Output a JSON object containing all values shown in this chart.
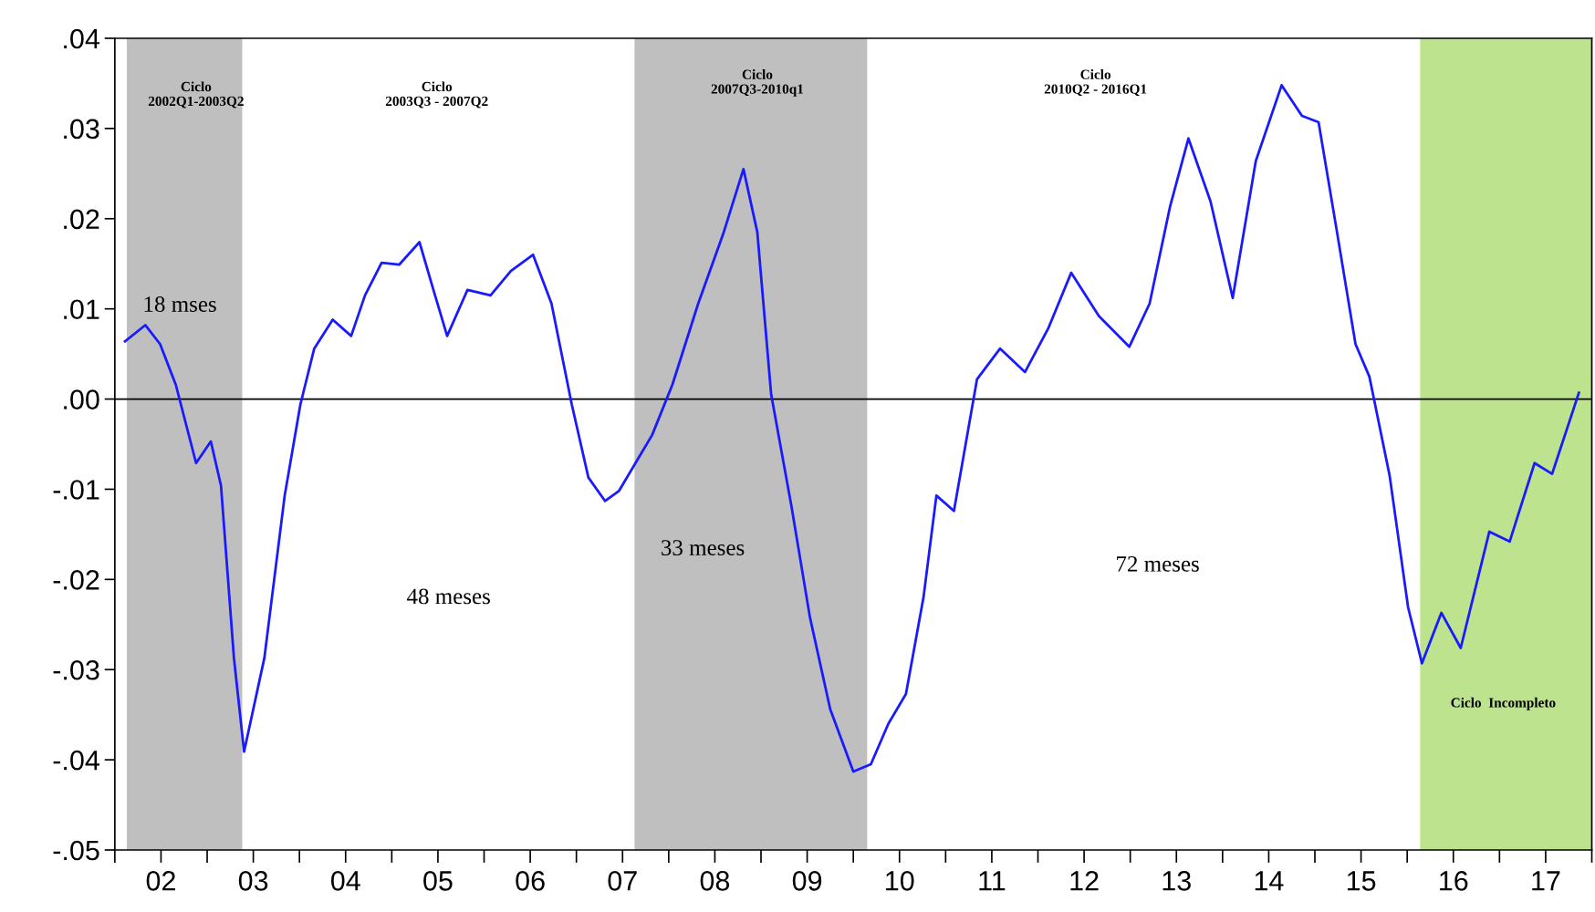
{
  "chart_data": {
    "type": "line",
    "x": [
      1.61,
      1.83,
      1.99,
      2.16,
      2.38,
      2.54,
      2.65,
      2.79,
      2.9,
      3.12,
      3.34,
      3.51,
      3.66,
      3.86,
      4.06,
      4.21,
      4.39,
      4.58,
      4.8,
      4.96,
      5.1,
      5.32,
      5.57,
      5.79,
      6.03,
      6.23,
      6.45,
      6.63,
      6.81,
      6.96,
      7.14,
      7.32,
      7.54,
      7.82,
      8.09,
      8.31,
      8.46,
      8.61,
      8.83,
      9.03,
      9.25,
      9.5,
      9.69,
      9.88,
      10.07,
      10.26,
      10.4,
      10.59,
      10.84,
      11.09,
      11.36,
      11.61,
      11.86,
      12.16,
      12.49,
      12.71,
      12.93,
      13.13,
      13.37,
      13.61,
      13.86,
      14.14,
      14.36,
      14.54,
      14.74,
      14.94,
      15.09,
      15.31,
      15.51,
      15.66,
      15.87,
      16.08,
      16.39,
      16.61,
      16.88,
      17.07,
      17.36
    ],
    "series": [
      {
        "color": "#1a1aff",
        "values": [
          0.0064,
          0.0082,
          0.0061,
          0.0016,
          -0.0071,
          -0.0047,
          -0.0096,
          -0.0287,
          -0.0391,
          -0.0287,
          -0.0107,
          -0.0006,
          0.0056,
          0.0088,
          0.007,
          0.0115,
          0.0151,
          0.0149,
          0.0174,
          0.0118,
          0.007,
          0.0121,
          0.0115,
          0.0142,
          0.016,
          0.0106,
          -0.0006,
          -0.0087,
          -0.0113,
          -0.0102,
          -0.0071,
          -0.004,
          0.0016,
          0.0106,
          0.0183,
          0.0255,
          0.0185,
          0.0005,
          -0.0119,
          -0.0242,
          -0.0344,
          -0.0413,
          -0.0405,
          -0.036,
          -0.0327,
          -0.022,
          -0.0107,
          -0.0124,
          0.0022,
          0.0056,
          0.003,
          0.0078,
          0.014,
          0.0092,
          0.0058,
          0.0106,
          0.0213,
          0.0289,
          0.0219,
          0.0112,
          0.0264,
          0.0348,
          0.0314,
          0.0307,
          0.0185,
          0.0061,
          0.0025,
          -0.0085,
          -0.0231,
          -0.0293,
          -0.0237,
          -0.0276,
          -0.0147,
          -0.0158,
          -0.0071,
          -0.0083,
          0.0007
        ]
      }
    ],
    "xlim": [
      1.5,
      17.5
    ],
    "xticks": [
      {
        "value": 1.5,
        "label": null
      },
      {
        "value": 2,
        "label": "02"
      },
      {
        "value": 2.5,
        "label": null
      },
      {
        "value": 3,
        "label": "03"
      },
      {
        "value": 3.5,
        "label": null
      },
      {
        "value": 4,
        "label": "04"
      },
      {
        "value": 4.5,
        "label": null
      },
      {
        "value": 5,
        "label": "05"
      },
      {
        "value": 5.5,
        "label": null
      },
      {
        "value": 6,
        "label": "06"
      },
      {
        "value": 6.5,
        "label": null
      },
      {
        "value": 7,
        "label": "07"
      },
      {
        "value": 7.5,
        "label": null
      },
      {
        "value": 8,
        "label": "08"
      },
      {
        "value": 8.5,
        "label": null
      },
      {
        "value": 9,
        "label": "09"
      },
      {
        "value": 9.5,
        "label": null
      },
      {
        "value": 10,
        "label": "10"
      },
      {
        "value": 10.5,
        "label": null
      },
      {
        "value": 11,
        "label": "11"
      },
      {
        "value": 11.5,
        "label": null
      },
      {
        "value": 12,
        "label": "12"
      },
      {
        "value": 12.5,
        "label": null
      },
      {
        "value": 13,
        "label": "13"
      },
      {
        "value": 13.5,
        "label": null
      },
      {
        "value": 14,
        "label": "14"
      },
      {
        "value": 14.5,
        "label": null
      },
      {
        "value": 15,
        "label": "15"
      },
      {
        "value": 15.5,
        "label": null
      },
      {
        "value": 16,
        "label": "16"
      },
      {
        "value": 16.5,
        "label": null
      },
      {
        "value": 17,
        "label": "17"
      },
      {
        "value": 17.5,
        "label": null
      }
    ],
    "ylim": [
      -0.05,
      0.04
    ],
    "yticks": [
      {
        "value": -0.05,
        "label": "-.05"
      },
      {
        "value": -0.04,
        "label": "-.04"
      },
      {
        "value": -0.03,
        "label": "-.03"
      },
      {
        "value": -0.02,
        "label": "-.02"
      },
      {
        "value": -0.01,
        "label": "-.01"
      },
      {
        "value": 0,
        "label": ".00"
      },
      {
        "value": 0.01,
        "label": ".01"
      },
      {
        "value": 0.02,
        "label": ".02"
      },
      {
        "value": 0.03,
        "label": ".03"
      },
      {
        "value": 0.04,
        "label": ".04"
      }
    ],
    "ref_lines": [
      {
        "axis": "y",
        "value": 0,
        "color": "#000000"
      }
    ],
    "bands": [
      {
        "axis": "x",
        "from": 1.63,
        "to": 2.88,
        "color": "#bfbfbf"
      },
      {
        "axis": "x",
        "from": 7.13,
        "to": 9.65,
        "color": "#bfbfbf"
      },
      {
        "axis": "x",
        "from": 15.64,
        "to": 17.5,
        "color": "#bde38f"
      }
    ],
    "annotations": [
      "Ciclo\n2002Q1-2003Q2",
      "Ciclo\n2003Q3 - 2007Q2",
      "Ciclo\n2007Q3-2010q1",
      "Ciclo\n2010Q2 - 2016Q1",
      "Ciclo  Incompleto",
      "18 mses",
      "48 meses",
      "33 meses",
      "72 meses"
    ],
    "grid": false,
    "legend": false,
    "marker": "none",
    "line_style": "solid"
  }
}
